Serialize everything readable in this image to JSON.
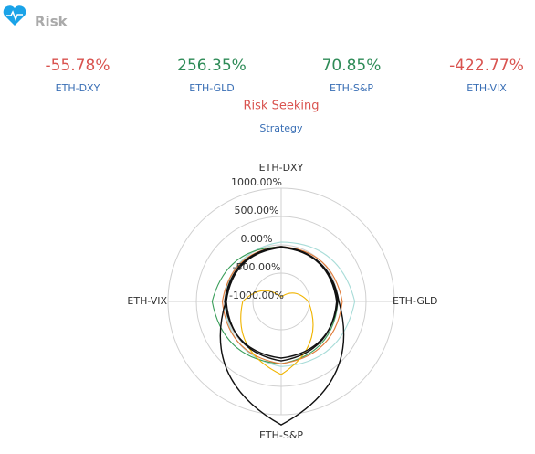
{
  "header": {
    "title": "Risk"
  },
  "stats": [
    {
      "value": "-55.78%",
      "label": "ETH-DXY",
      "color": "#d9534f"
    },
    {
      "value": "256.35%",
      "label": "ETH-GLD",
      "color": "#2e8b57"
    },
    {
      "value": "70.85%",
      "label": "ETH-S&P",
      "color": "#2e8b57"
    },
    {
      "value": "-422.77%",
      "label": "ETH-VIX",
      "color": "#d9534f"
    }
  ],
  "profile": {
    "title": "Risk Seeking",
    "subtitle": "Strategy"
  },
  "chart_data": {
    "type": "radar",
    "categories": [
      "ETH-DXY",
      "ETH-GLD",
      "ETH-S&P",
      "ETH-VIX"
    ],
    "rlim": [
      -1000,
      1000
    ],
    "rticks": [
      {
        "value": -1000,
        "label": "-1000.00%"
      },
      {
        "value": -500,
        "label": "-500.00%"
      },
      {
        "value": 0,
        "label": "0.00%"
      },
      {
        "value": 500,
        "label": "500.00%"
      },
      {
        "value": 1000,
        "label": "1000.00%"
      }
    ],
    "series": [
      {
        "color": "#a8dcd8",
        "values": [
          50,
          300,
          150,
          0
        ]
      },
      {
        "color": "#3a9e5a",
        "values": [
          -40,
          0,
          100,
          220
        ]
      },
      {
        "color": "#e07b39",
        "values": [
          -30,
          80,
          100,
          40
        ]
      },
      {
        "color": "#f0b400",
        "values": [
          -920,
          -520,
          290,
          -320
        ]
      },
      {
        "color": "#111111",
        "values": [
          -40,
          -20,
          50,
          -30
        ]
      },
      {
        "color": "#111111",
        "values": [
          -50,
          20,
          1180,
          -20
        ]
      },
      {
        "color": "#111111",
        "values": [
          -30,
          0,
          0,
          0
        ]
      }
    ]
  }
}
